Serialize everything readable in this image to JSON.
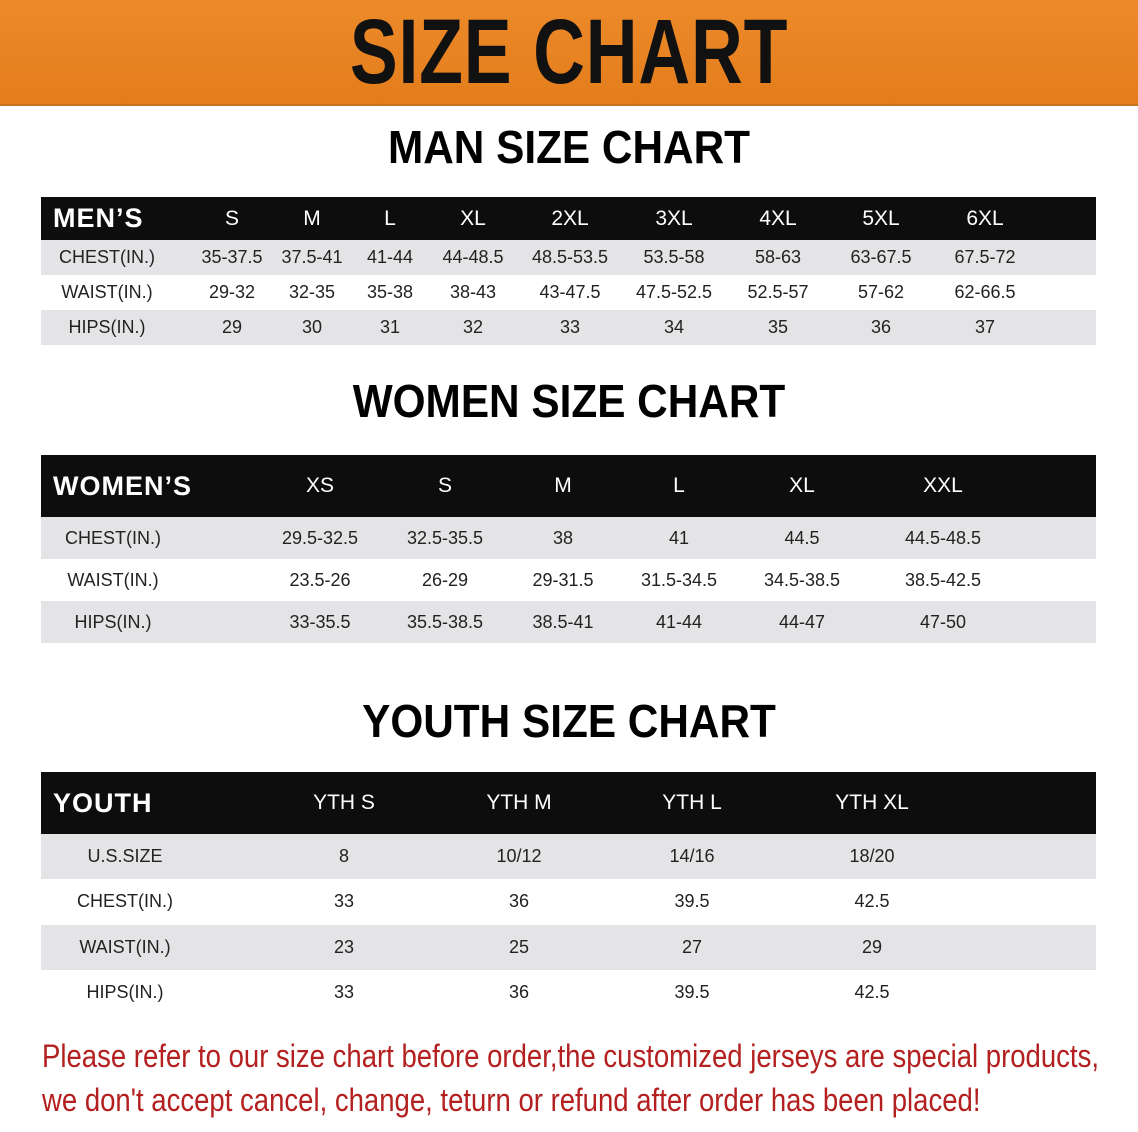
{
  "banner": {
    "title": "SIZE CHART",
    "color": "#e8841f"
  },
  "men": {
    "title": "MAN SIZE CHART",
    "header": [
      "MEN’S",
      "S",
      "M",
      "L",
      "XL",
      "2XL",
      "3XL",
      "4XL",
      "5XL",
      "6XL"
    ],
    "rows": [
      [
        "CHEST(IN.)",
        "35-37.5",
        "37.5-41",
        "41-44",
        "44-48.5",
        "48.5-53.5",
        "53.5-58",
        "58-63",
        "63-67.5",
        "67.5-72"
      ],
      [
        "WAIST(IN.)",
        "29-32",
        "32-35",
        "35-38",
        "38-43",
        "43-47.5",
        "47.5-52.5",
        "52.5-57",
        "57-62",
        "62-66.5"
      ],
      [
        "HIPS(IN.)",
        "29",
        "30",
        "31",
        "32",
        "33",
        "34",
        "35",
        "36",
        "37"
      ]
    ]
  },
  "women": {
    "title": "WOMEN SIZE CHART",
    "header": [
      "WOMEN’S",
      "XS",
      "S",
      "M",
      "L",
      "XL",
      "XXL"
    ],
    "rows": [
      [
        "CHEST(IN.)",
        "29.5-32.5",
        "32.5-35.5",
        "38",
        "41",
        "44.5",
        "44.5-48.5"
      ],
      [
        "WAIST(IN.)",
        "23.5-26",
        "26-29",
        "29-31.5",
        "31.5-34.5",
        "34.5-38.5",
        "38.5-42.5"
      ],
      [
        "HIPS(IN.)",
        "33-35.5",
        "35.5-38.5",
        "38.5-41",
        "41-44",
        "44-47",
        "47-50"
      ]
    ]
  },
  "youth": {
    "title": "YOUTH SIZE CHART",
    "header": [
      "YOUTH",
      "YTH S",
      "YTH M",
      "YTH L",
      "YTH XL"
    ],
    "rows": [
      [
        "U.S.SIZE",
        "8",
        "10/12",
        "14/16",
        "18/20"
      ],
      [
        "CHEST(IN.)",
        "33",
        "36",
        "39.5",
        "42.5"
      ],
      [
        "WAIST(IN.)",
        "23",
        "25",
        "27",
        "29"
      ],
      [
        "HIPS(IN.)",
        "33",
        "36",
        "39.5",
        "42.5"
      ]
    ]
  },
  "notice": {
    "line1": "Please refer to our size chart before order,the customized jerseys are special products,",
    "line2": "we don't accept cancel, change, teturn or refund after order has been placed!",
    "color": "#b3201f"
  }
}
